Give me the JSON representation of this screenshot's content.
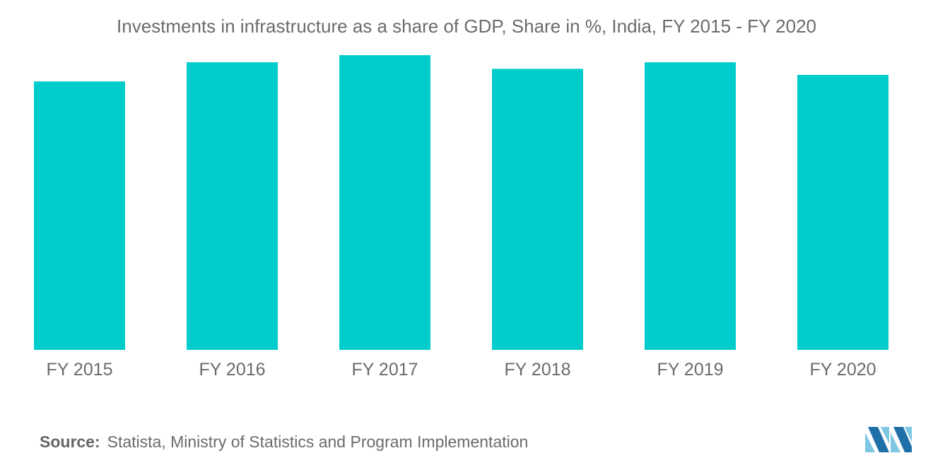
{
  "title": "Investments in infrastructure as a share of GDP, Share in %, India, FY 2015 - FY 2020",
  "source": {
    "label": "Source:",
    "text": "Statista, Ministry of Statistics and Program Implementation"
  },
  "colors": {
    "bar": "#00CCCC",
    "text": "#6b6b6b",
    "logo_light": "#7ec8e3",
    "logo_dark": "#1f6fa8"
  },
  "logo_icon": "mordor-intelligence-logo",
  "chart_data": {
    "type": "bar",
    "categories": [
      "FY 2015",
      "FY 2016",
      "FY 2017",
      "FY 2018",
      "FY 2019",
      "FY 2020"
    ],
    "values": [
      4.9,
      5.25,
      5.38,
      5.13,
      5.25,
      5.02
    ],
    "ylim": [
      0,
      6.0
    ],
    "title": "Investments in infrastructure as a share of GDP, Share in %, India, FY 2015 - FY 2020",
    "xlabel": "",
    "ylabel": "",
    "grid": false,
    "legend": "none"
  }
}
